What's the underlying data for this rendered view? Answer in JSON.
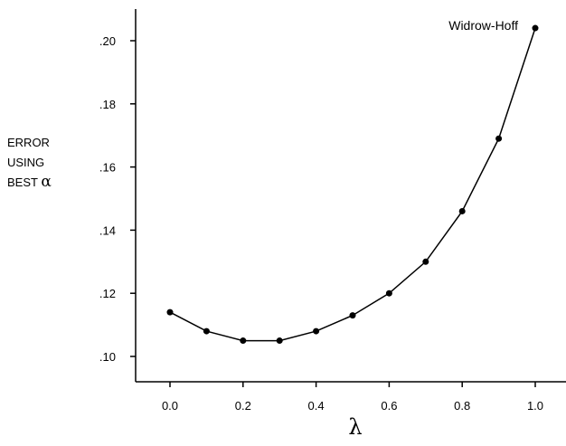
{
  "chart_data": {
    "type": "line",
    "title": "",
    "xlabel": "λ",
    "ylabel_lines": [
      "ERROR",
      "USING",
      "BEST α"
    ],
    "x": [
      0.0,
      0.1,
      0.2,
      0.3,
      0.4,
      0.5,
      0.6,
      0.7,
      0.8,
      0.9,
      1.0
    ],
    "series": [
      {
        "values": [
          0.114,
          0.108,
          0.105,
          0.105,
          0.108,
          0.113,
          0.12,
          0.13,
          0.146,
          0.169,
          0.204
        ]
      }
    ],
    "xlim": [
      -0.1,
      1.1
    ],
    "ylim": [
      0.093,
      0.209
    ],
    "xticks": [
      0.0,
      0.2,
      0.4,
      0.6,
      0.8,
      1.0
    ],
    "xtick_labels": [
      "0.0",
      "0.2",
      "0.4",
      "0.6",
      "0.8",
      "1.0"
    ],
    "yticks": [
      0.1,
      0.12,
      0.14,
      0.16,
      0.18,
      0.2
    ],
    "ytick_labels": [
      ".10",
      ".12",
      ".14",
      ".16",
      ".18",
      ".20"
    ],
    "annotation": {
      "text": "Widrow-Hoff",
      "at_x": 1.0
    },
    "grid": false,
    "colors": {
      "line": "#000000",
      "marker": "#000000",
      "axis": "#000000"
    }
  }
}
